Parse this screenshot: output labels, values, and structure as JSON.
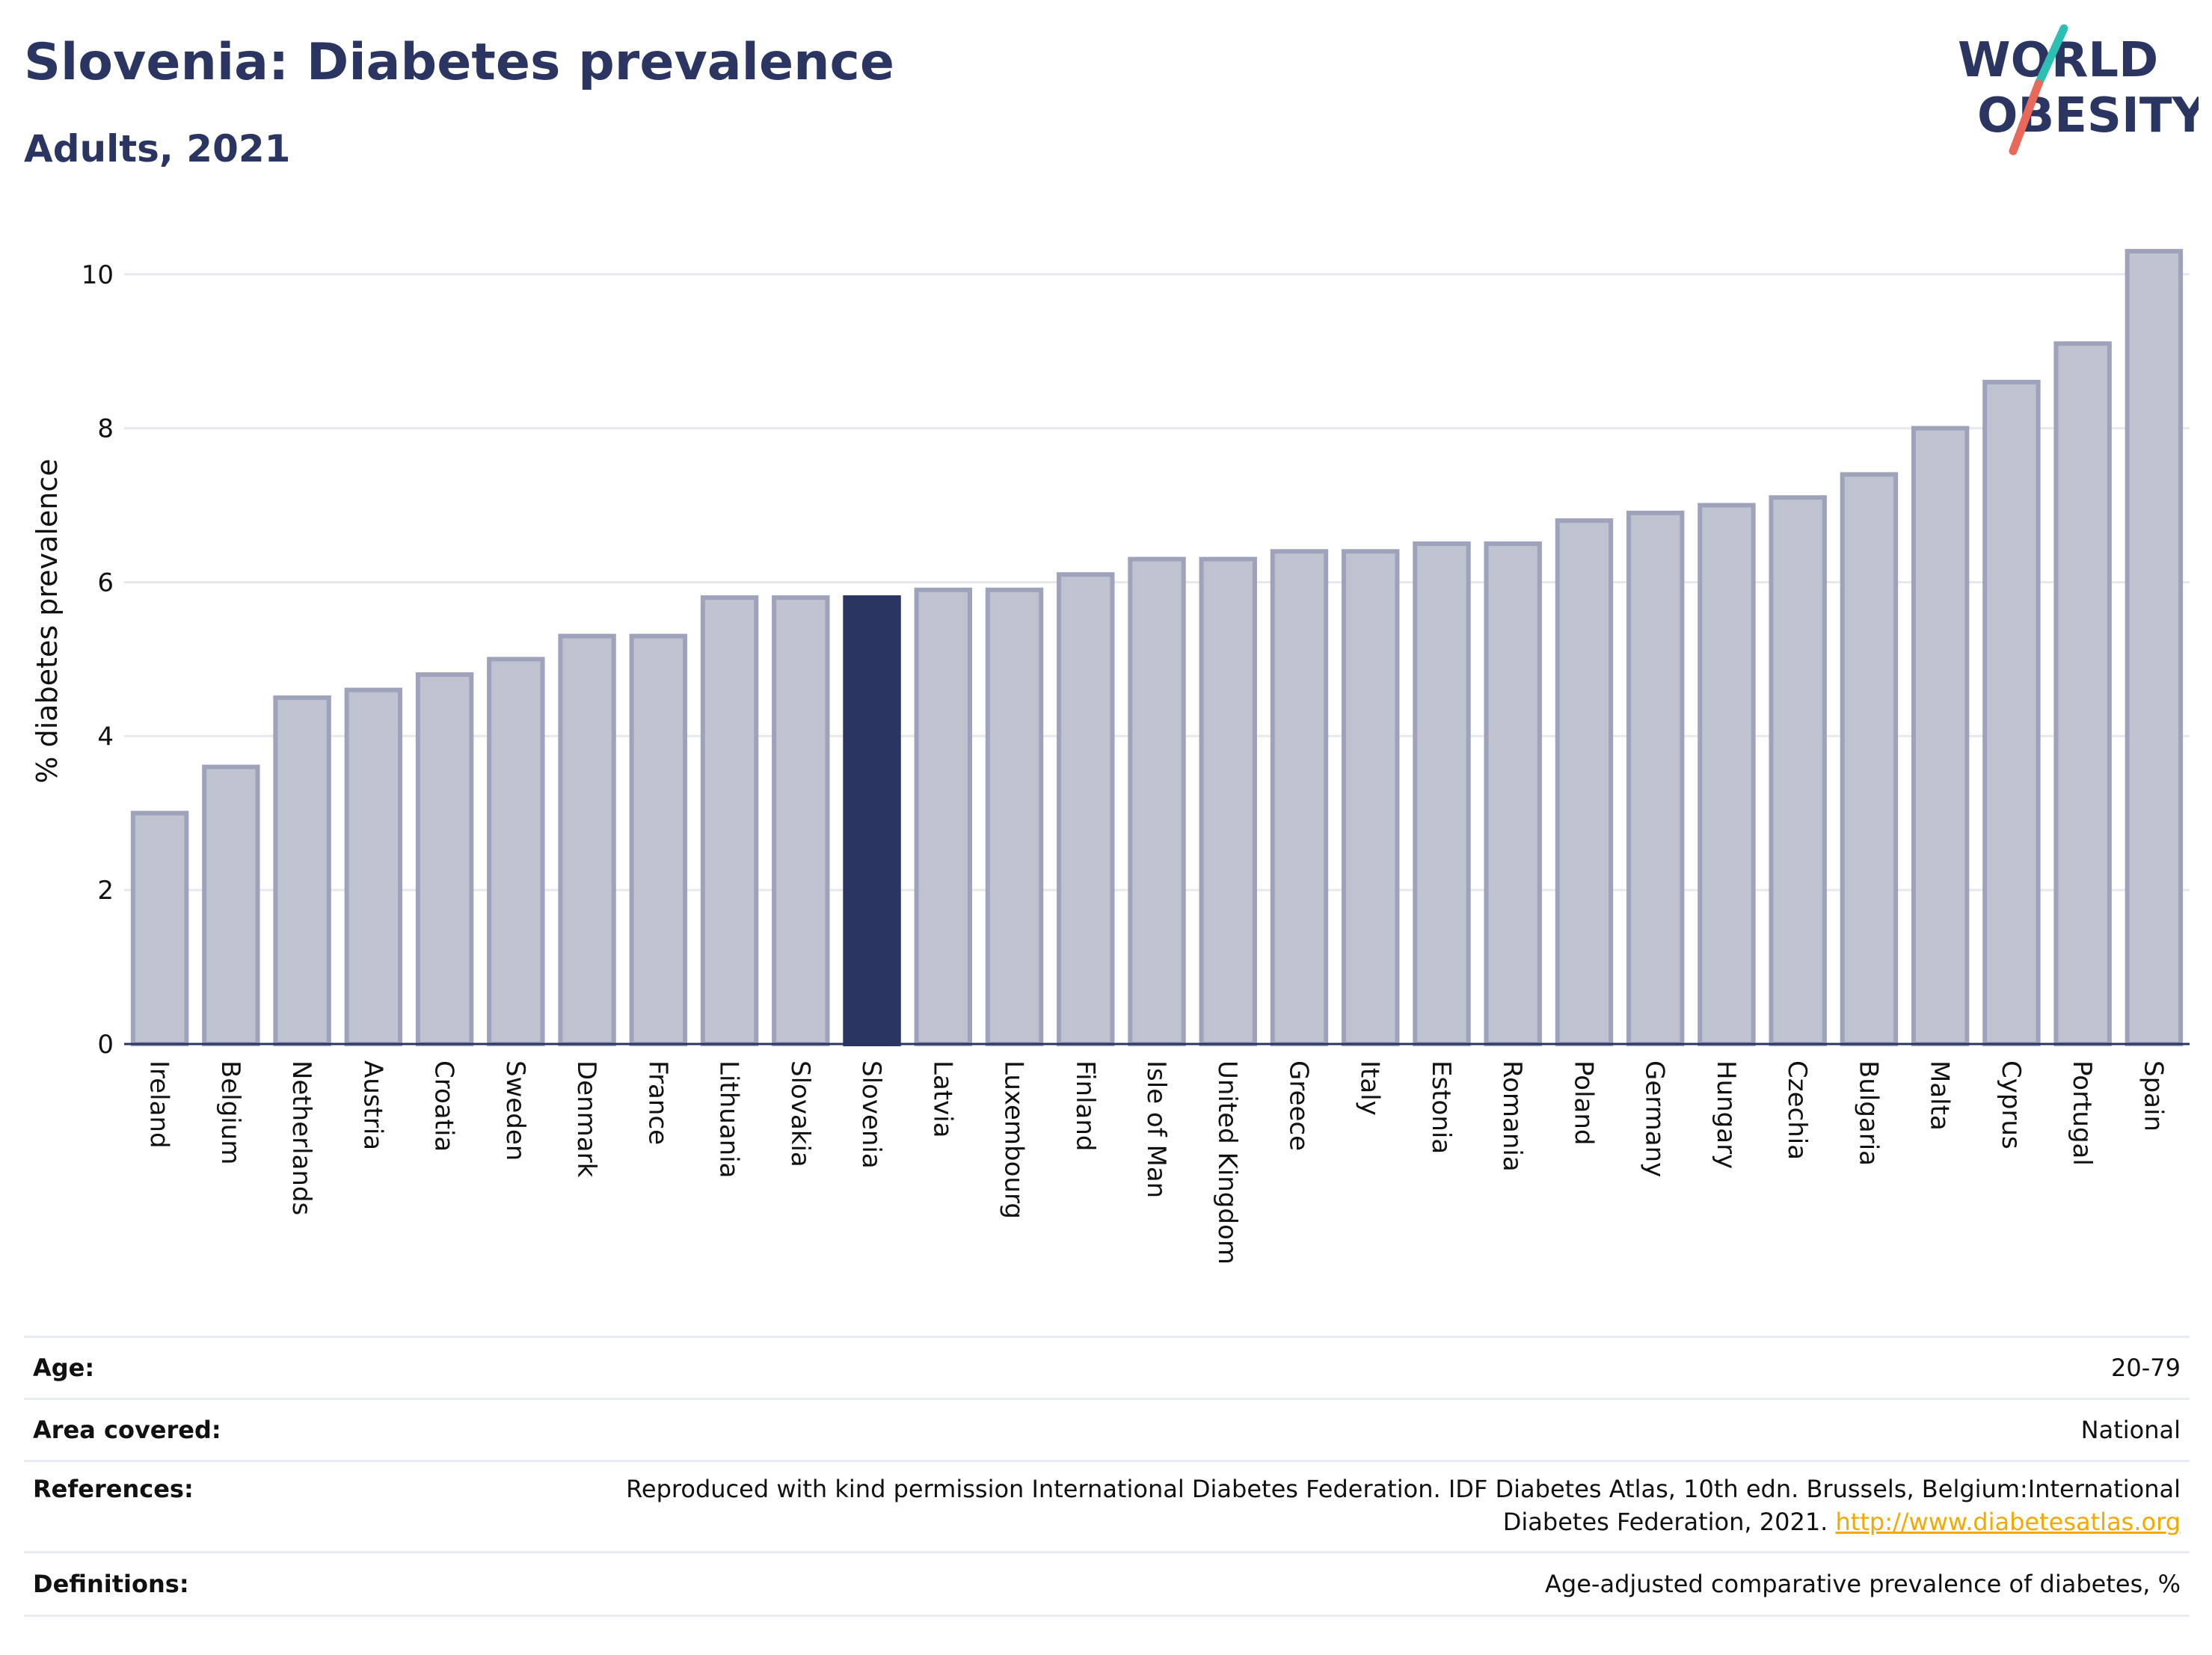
{
  "header": {
    "title": "Slovenia: Diabetes prevalence",
    "subtitle": "Adults, 2021"
  },
  "logo": {
    "line1": "WORLD",
    "line2": "OBESITY",
    "accent_teal": "#2ebfb3",
    "accent_red": "#e8685a",
    "color": "#2b3561"
  },
  "colors": {
    "bar": "#bfc2cf",
    "bar_border": "#9ea3bb",
    "highlight": "#2b3561",
    "grid": "#e6e8ee",
    "axis": "#2b3561"
  },
  "chart_data": {
    "type": "bar",
    "ylabel": "% diabetes prevalence",
    "ylim": [
      0,
      10.6
    ],
    "yticks": [
      0,
      2,
      4,
      6,
      8,
      10
    ],
    "highlight": "Slovenia",
    "categories": [
      "Ireland",
      "Belgium",
      "Netherlands",
      "Austria",
      "Croatia",
      "Sweden",
      "Denmark",
      "France",
      "Lithuania",
      "Slovakia",
      "Slovenia",
      "Latvia",
      "Luxembourg",
      "Finland",
      "Isle of Man",
      "United Kingdom",
      "Greece",
      "Italy",
      "Estonia",
      "Romania",
      "Poland",
      "Germany",
      "Hungary",
      "Czechia",
      "Bulgaria",
      "Malta",
      "Cyprus",
      "Portugal",
      "Spain"
    ],
    "values": [
      3.0,
      3.6,
      4.5,
      4.6,
      4.8,
      5.0,
      5.3,
      5.3,
      5.8,
      5.8,
      5.8,
      5.9,
      5.9,
      6.1,
      6.3,
      6.3,
      6.4,
      6.4,
      6.5,
      6.5,
      6.8,
      6.9,
      7.0,
      7.1,
      7.4,
      8.0,
      8.6,
      9.1,
      10.3
    ],
    "grid": true
  },
  "info": {
    "age_label": "Age:",
    "age_value": "20-79",
    "area_label": "Area covered:",
    "area_value": "National",
    "refs_label": "References:",
    "refs_line1": "Reproduced with kind permission International Diabetes Federation.  IDF Diabetes Atlas, 10th edn. Brussels, Belgium:International",
    "refs_line2": "Diabetes Federation, 2021.",
    "refs_link": "http://www.diabetesatlas.org",
    "def_label": "Definitions:",
    "def_value": "Age-adjusted comparative prevalence of diabetes, %"
  }
}
